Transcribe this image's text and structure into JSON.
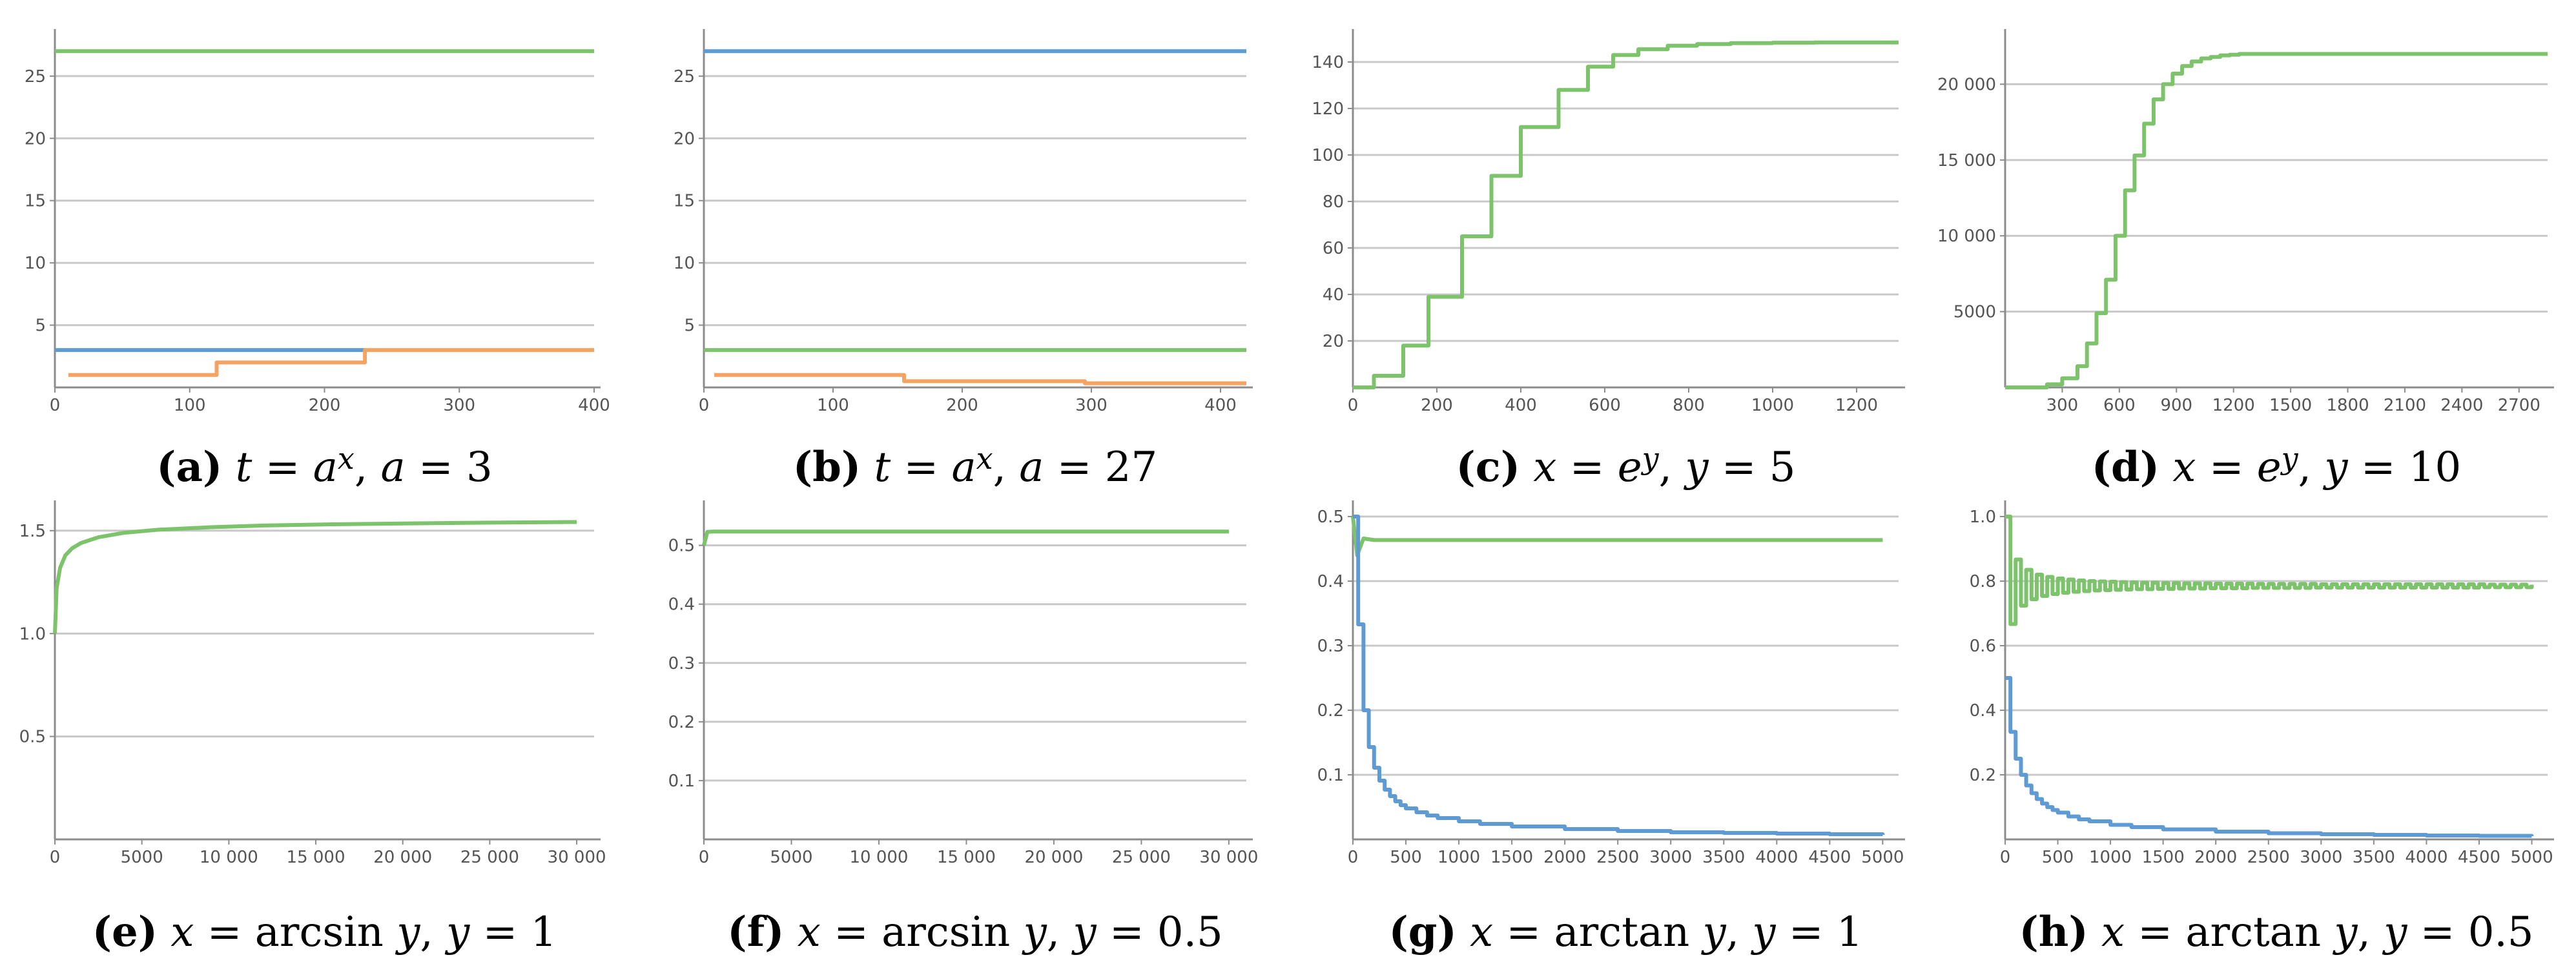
{
  "colors": {
    "blue": "#5e9bd4",
    "orange": "#f4a460",
    "green": "#7cc36c"
  },
  "chart_data": [
    {
      "type": "line",
      "caption_label": "(a)",
      "caption": "t = a^x, a = 3",
      "xlim": [
        0,
        400
      ],
      "ylim": [
        0,
        28
      ],
      "xticks": [
        0,
        100,
        200,
        300,
        400
      ],
      "yticks": [
        5,
        10,
        15,
        20,
        25
      ],
      "grid": true,
      "series": [
        {
          "color": "green",
          "x": [
            0,
            400
          ],
          "y": [
            27,
            27
          ]
        },
        {
          "color": "blue",
          "x": [
            0,
            230
          ],
          "y": [
            3,
            3
          ]
        },
        {
          "color": "orange",
          "step": true,
          "x": [
            10,
            120,
            230,
            400
          ],
          "y": [
            1,
            2,
            3,
            3
          ]
        }
      ]
    },
    {
      "type": "line",
      "caption_label": "(b)",
      "caption": "t = a^x, a = 27",
      "xlim": [
        0,
        420
      ],
      "ylim": [
        0,
        28
      ],
      "xticks": [
        0,
        100,
        200,
        300,
        400
      ],
      "yticks": [
        5,
        10,
        15,
        20,
        25
      ],
      "grid": true,
      "series": [
        {
          "color": "blue",
          "x": [
            0,
            420
          ],
          "y": [
            27,
            27
          ]
        },
        {
          "color": "green",
          "x": [
            0,
            420
          ],
          "y": [
            3,
            3
          ]
        },
        {
          "color": "orange",
          "step": true,
          "x": [
            8,
            155,
            295,
            420
          ],
          "y": [
            1,
            0.5,
            0.33,
            0.33
          ]
        }
      ]
    },
    {
      "type": "line",
      "caption_label": "(c)",
      "caption": "x = e^y, y = 5",
      "xlim": [
        0,
        1300
      ],
      "ylim": [
        0,
        150
      ],
      "xticks": [
        0,
        200,
        400,
        600,
        800,
        1000,
        1200
      ],
      "yticks": [
        20,
        40,
        60,
        80,
        100,
        120,
        140
      ],
      "grid": true,
      "series": [
        {
          "color": "green",
          "step": true,
          "x": [
            0,
            50,
            120,
            180,
            260,
            330,
            400,
            490,
            560,
            620,
            680,
            750,
            820,
            900,
            1000,
            1100,
            1300
          ],
          "y": [
            0,
            5,
            18,
            39,
            65,
            91,
            112,
            128,
            138,
            143,
            145.5,
            147,
            147.7,
            148.1,
            148.3,
            148.4,
            148.4
          ]
        }
      ]
    },
    {
      "type": "line",
      "caption_label": "(d)",
      "caption": "x = e^y, y = 10",
      "xlim": [
        0,
        2850
      ],
      "ylim": [
        0,
        23000
      ],
      "xticks": [
        300,
        600,
        900,
        1200,
        1500,
        1800,
        2100,
        2400,
        2700
      ],
      "yticks": [
        5000,
        10000,
        15000,
        20000
      ],
      "ytick_labels": [
        "5000",
        "10 000",
        "15 000",
        "20 000"
      ],
      "grid": true,
      "series": [
        {
          "color": "green",
          "step": true,
          "x": [
            0,
            220,
            300,
            380,
            430,
            480,
            530,
            580,
            630,
            680,
            730,
            780,
            830,
            880,
            930,
            980,
            1030,
            1080,
            1130,
            1180,
            1230,
            1300,
            1400,
            2850
          ],
          "y": [
            0,
            200,
            600,
            1400,
            2900,
            4900,
            7100,
            10000,
            13000,
            15300,
            17400,
            19000,
            20000,
            20700,
            21200,
            21500,
            21700,
            21800,
            21900,
            21950,
            22000,
            22000,
            22000,
            22000
          ]
        }
      ]
    },
    {
      "type": "line",
      "caption_label": "(e)",
      "caption": "x = arcsin y, y = 1",
      "xlim": [
        0,
        31000
      ],
      "ylim": [
        0,
        1.6
      ],
      "xticks": [
        0,
        5000,
        10000,
        15000,
        20000,
        25000,
        30000
      ],
      "xtick_labels": [
        "0",
        "5000",
        "10 000",
        "15 000",
        "20 000",
        "25 000",
        "30 000"
      ],
      "yticks": [
        0.5,
        1.0,
        1.5
      ],
      "ytick_labels": [
        "0.5",
        "1.0",
        "1.5"
      ],
      "grid": true,
      "series": [
        {
          "color": "green",
          "x": [
            0,
            100,
            300,
            600,
            1000,
            1500,
            2500,
            4000,
            6000,
            9000,
            12000,
            16000,
            20000,
            25000,
            30000
          ],
          "y": [
            1.0,
            1.22,
            1.32,
            1.38,
            1.415,
            1.44,
            1.468,
            1.49,
            1.505,
            1.517,
            1.525,
            1.531,
            1.535,
            1.539,
            1.542
          ]
        }
      ]
    },
    {
      "type": "line",
      "caption_label": "(f)",
      "caption": "x = arcsin y, y = 0.5",
      "xlim": [
        0,
        31000
      ],
      "ylim": [
        0,
        0.56
      ],
      "xticks": [
        0,
        5000,
        10000,
        15000,
        20000,
        25000,
        30000
      ],
      "xtick_labels": [
        "0",
        "5000",
        "10 000",
        "15 000",
        "20 000",
        "25 000",
        "30 000"
      ],
      "yticks": [
        0.1,
        0.2,
        0.3,
        0.4,
        0.5
      ],
      "grid": true,
      "series": [
        {
          "color": "green",
          "x": [
            0,
            200,
            500,
            30000
          ],
          "y": [
            0.5,
            0.523,
            0.5236,
            0.5236
          ]
        }
      ]
    },
    {
      "type": "line",
      "caption_label": "(g)",
      "caption": "x = arctan y, y = 1",
      "xlim": [
        0,
        5150
      ],
      "ylim": [
        0,
        0.51
      ],
      "xticks": [
        0,
        500,
        1000,
        1500,
        2000,
        2500,
        3000,
        3500,
        4000,
        4500,
        5000
      ],
      "yticks": [
        0.1,
        0.2,
        0.3,
        0.4,
        0.5
      ],
      "grid": true,
      "series": [
        {
          "color": "green",
          "x": [
            0,
            40,
            100,
            200,
            5000
          ],
          "y": [
            0.5,
            0.44,
            0.466,
            0.4636,
            0.4636
          ]
        },
        {
          "color": "blue",
          "step": true,
          "x": [
            0,
            50,
            100,
            150,
            200,
            250,
            300,
            350,
            400,
            450,
            500,
            600,
            700,
            800,
            1000,
            1200,
            1500,
            2000,
            2500,
            3000,
            3500,
            4000,
            4500,
            5000
          ],
          "y": [
            0.5,
            0.333,
            0.2,
            0.143,
            0.111,
            0.091,
            0.077,
            0.067,
            0.059,
            0.053,
            0.048,
            0.042,
            0.037,
            0.033,
            0.028,
            0.024,
            0.02,
            0.016,
            0.013,
            0.011,
            0.01,
            0.009,
            0.008,
            0.007
          ]
        }
      ]
    },
    {
      "type": "line",
      "caption_label": "(h)",
      "caption": "x = arctan y, y = 0.5",
      "xlim": [
        0,
        5150
      ],
      "ylim": [
        0,
        1.02
      ],
      "xticks": [
        0,
        500,
        1000,
        1500,
        2000,
        2500,
        3000,
        3500,
        4000,
        4500,
        5000
      ],
      "yticks": [
        0.2,
        0.4,
        0.6,
        0.8,
        1.0
      ],
      "ytick_labels": [
        "0.2",
        "0.4",
        "0.6",
        "0.8",
        "1.0"
      ],
      "grid": true,
      "series": [
        {
          "color": "green",
          "step": true,
          "x": [
            0,
            50,
            100,
            150,
            200,
            250,
            300,
            350,
            400,
            450,
            500,
            550,
            600,
            650,
            700,
            750,
            800,
            850,
            900,
            950,
            1000,
            1050,
            1100,
            1150,
            1200,
            1250,
            1300,
            1350,
            1400,
            1450,
            1500,
            1550,
            1600,
            1650,
            1700,
            1750,
            1800,
            1850,
            1900,
            1950,
            2000,
            2050,
            2100,
            2150,
            2200,
            2250,
            2300,
            2350,
            2400,
            2450,
            2500,
            2550,
            2600,
            2650,
            2700,
            2750,
            2800,
            2850,
            2900,
            2950,
            3000,
            3050,
            3100,
            3150,
            3200,
            3250,
            3300,
            3350,
            3400,
            3450,
            3500,
            3550,
            3600,
            3650,
            3700,
            3750,
            3800,
            3850,
            3900,
            3950,
            4000,
            4050,
            4100,
            4150,
            4200,
            4250,
            4300,
            4350,
            4400,
            4450,
            4500,
            4550,
            4600,
            4650,
            4700,
            4750,
            4800,
            4850,
            4900,
            4950,
            5000
          ],
          "y": [
            1.0,
            0.667,
            0.867,
            0.724,
            0.835,
            0.744,
            0.82,
            0.754,
            0.813,
            0.76,
            0.808,
            0.764,
            0.805,
            0.767,
            0.802,
            0.769,
            0.8,
            0.771,
            0.799,
            0.772,
            0.798,
            0.773,
            0.797,
            0.774,
            0.796,
            0.775,
            0.795,
            0.775,
            0.795,
            0.776,
            0.794,
            0.776,
            0.794,
            0.777,
            0.793,
            0.777,
            0.793,
            0.777,
            0.793,
            0.778,
            0.792,
            0.778,
            0.792,
            0.778,
            0.792,
            0.778,
            0.792,
            0.779,
            0.791,
            0.779,
            0.791,
            0.779,
            0.791,
            0.779,
            0.791,
            0.779,
            0.791,
            0.779,
            0.791,
            0.78,
            0.79,
            0.78,
            0.79,
            0.78,
            0.79,
            0.78,
            0.79,
            0.78,
            0.79,
            0.78,
            0.79,
            0.78,
            0.79,
            0.78,
            0.79,
            0.78,
            0.79,
            0.78,
            0.79,
            0.78,
            0.79,
            0.78,
            0.79,
            0.78,
            0.79,
            0.78,
            0.79,
            0.78,
            0.79,
            0.78,
            0.79,
            0.781,
            0.789,
            0.781,
            0.789,
            0.781,
            0.789,
            0.781,
            0.789,
            0.781,
            0.789
          ]
        },
        {
          "color": "blue",
          "step": true,
          "x": [
            0,
            50,
            100,
            150,
            200,
            250,
            300,
            350,
            400,
            450,
            500,
            600,
            700,
            800,
            1000,
            1200,
            1500,
            2000,
            2500,
            3000,
            3500,
            4000,
            4500,
            5000
          ],
          "y": [
            0.5,
            0.333,
            0.25,
            0.2,
            0.167,
            0.143,
            0.125,
            0.111,
            0.1,
            0.091,
            0.083,
            0.071,
            0.062,
            0.056,
            0.045,
            0.038,
            0.031,
            0.024,
            0.019,
            0.016,
            0.014,
            0.012,
            0.011,
            0.01
          ]
        }
      ]
    }
  ]
}
